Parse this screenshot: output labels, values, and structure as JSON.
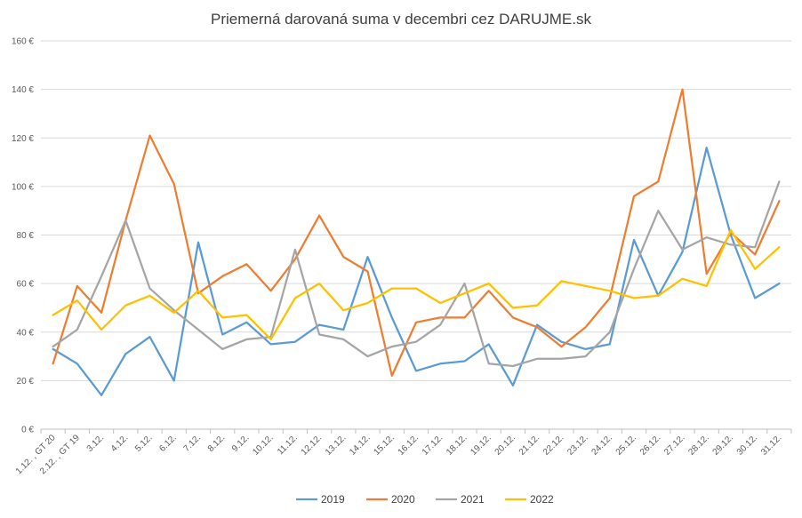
{
  "chart_data": {
    "type": "line",
    "title": "Priemerná darovaná suma v decembri cez DARUJME.sk",
    "xlabel": "",
    "ylabel": "",
    "ylim": [
      0,
      160
    ],
    "yticks": [
      0,
      20,
      40,
      60,
      80,
      100,
      120,
      140,
      160
    ],
    "ytick_labels": [
      "0 €",
      "20 €",
      "40 €",
      "60 €",
      "80 €",
      "100 €",
      "120 €",
      "140 €",
      "160 €"
    ],
    "grid": true,
    "legend_position": "bottom",
    "categories": [
      "1.12. , GT 20",
      "2.12. , GT 19",
      "3.12.",
      "4.12.",
      "5.12.",
      "6.12.",
      "7.12.",
      "8.12.",
      "9.12.",
      "10.12.",
      "11.12.",
      "12.12.",
      "13.12.",
      "14.12.",
      "15.12.",
      "16.12.",
      "17.12.",
      "18.12.",
      "19.12.",
      "20.12.",
      "21.12.",
      "22.12.",
      "23.12.",
      "24.12.",
      "25.12.",
      "26.12.",
      "27.12.",
      "28.12.",
      "29.12.",
      "30.12.",
      "31.12."
    ],
    "series": [
      {
        "name": "2019",
        "color": "#5b9bd5",
        "values": [
          33,
          27,
          14,
          31,
          38,
          20,
          77,
          39,
          44,
          35,
          36,
          43,
          41,
          71,
          46,
          24,
          27,
          28,
          35,
          18,
          43,
          36,
          33,
          35,
          78,
          55,
          73,
          116,
          80,
          54,
          60
        ]
      },
      {
        "name": "2020",
        "color": "#ed7d31",
        "values": [
          27,
          59,
          48,
          86,
          121,
          101,
          56,
          63,
          68,
          57,
          70,
          88,
          71,
          65,
          22,
          44,
          46,
          46,
          57,
          46,
          42,
          34,
          42,
          54,
          96,
          102,
          140,
          64,
          81,
          72,
          94
        ]
      },
      {
        "name": "2021",
        "color": "#a5a5a5",
        "values": [
          34,
          41,
          63,
          86,
          58,
          49,
          41,
          33,
          37,
          38,
          74,
          39,
          37,
          30,
          34,
          36,
          43,
          60,
          27,
          26,
          29,
          29,
          30,
          40,
          66,
          90,
          74,
          79,
          76,
          75,
          102
        ]
      },
      {
        "name": "2022",
        "color": "#ffc000",
        "values": [
          47,
          53,
          41,
          51,
          55,
          48,
          57,
          46,
          47,
          37,
          54,
          60,
          49,
          52,
          58,
          58,
          52,
          56,
          60,
          50,
          51,
          61,
          59,
          57,
          54,
          55,
          62,
          59,
          82,
          66,
          75
        ]
      }
    ]
  }
}
